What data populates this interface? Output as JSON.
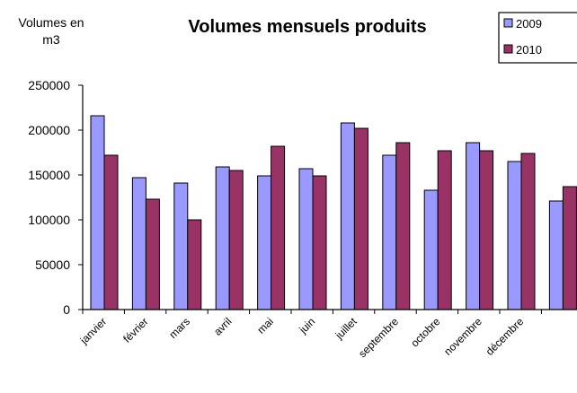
{
  "chart_data": {
    "type": "bar",
    "title": "Volumes mensuels produits",
    "ylabel_lines": [
      "Volumes en",
      "m3"
    ],
    "xlabel": "",
    "categories": [
      "janvier",
      "février",
      "mars",
      "avril",
      "mai",
      "juin",
      "juillet",
      "septembre",
      "octobre",
      "novembre",
      "décembre",
      ""
    ],
    "series": [
      {
        "name": "2009",
        "color": "#9999ff",
        "values": [
          216000,
          147000,
          141000,
          159000,
          149000,
          157000,
          208000,
          172000,
          133000,
          186000,
          165000,
          121000
        ]
      },
      {
        "name": "2010",
        "color": "#993366",
        "values": [
          172000,
          123000,
          100000,
          155000,
          182000,
          149000,
          202000,
          186000,
          177000,
          177000,
          174000,
          137000
        ]
      }
    ],
    "ylim": [
      0,
      250000
    ],
    "yticks": [
      "0",
      "50000",
      "100000",
      "150000",
      "200000",
      "250000"
    ],
    "grid": false,
    "legend_position": "top-right"
  }
}
